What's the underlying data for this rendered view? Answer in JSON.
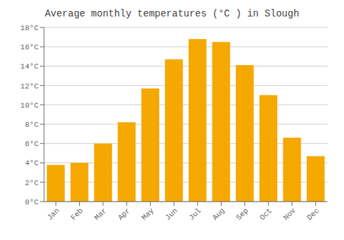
{
  "chart_data": {
    "type": "bar",
    "title": "Average monthly temperatures (°C ) in Slough",
    "categories": [
      "Jan",
      "Feb",
      "Mar",
      "Apr",
      "May",
      "Jun",
      "Jul",
      "Aug",
      "Sep",
      "Oct",
      "Nov",
      "Dec"
    ],
    "values": [
      3.8,
      4.0,
      6.0,
      8.2,
      11.7,
      14.7,
      16.8,
      16.5,
      14.1,
      11.0,
      6.6,
      4.7
    ],
    "color": "#F5A800",
    "ylim": [
      0,
      18
    ],
    "yticks": [
      {
        "value": 0,
        "label": "0°C"
      },
      {
        "value": 2,
        "label": "2°C"
      },
      {
        "value": 4,
        "label": "4°C"
      },
      {
        "value": 6,
        "label": "6°C"
      },
      {
        "value": 8,
        "label": "8°C"
      },
      {
        "value": 10,
        "label": "10°C"
      },
      {
        "value": 12,
        "label": "12°C"
      },
      {
        "value": 14,
        "label": "14°C"
      },
      {
        "value": 16,
        "label": "16°C"
      },
      {
        "value": 18,
        "label": "18°C"
      }
    ],
    "grid": true
  }
}
